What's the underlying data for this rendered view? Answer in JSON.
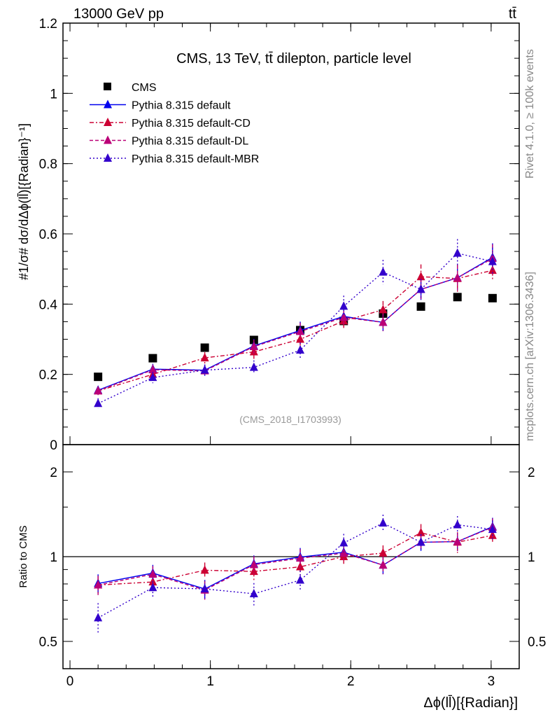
{
  "header": {
    "left": "13000 GeV pp",
    "right": "tt̄"
  },
  "side": {
    "top": "Rivet 4.1.0, ≥ 100k events",
    "bottom": "mcplots.cern.ch [arXiv:1306.3436]"
  },
  "chart_data": {
    "type": "scatter",
    "title": "CMS, 13 TeV, tt̄ dilepton, particle level",
    "watermark": "(CMS_2018_I1703993)",
    "xlabel": "Δϕ(ll̄)[{Radian}]",
    "ylabel": "#1/σ# dσ/dΔϕ(ll̄)[{Radian}⁻¹]",
    "ratio_ylabel": "Ratio to CMS",
    "xlim": [
      -0.05,
      3.2
    ],
    "ylim": [
      0,
      1.2
    ],
    "ratio_ylim": [
      0.4,
      2.5
    ],
    "xticks": [
      "0",
      "1",
      "2",
      "3"
    ],
    "yticks": [
      "0",
      "0.2",
      "0.4",
      "0.6",
      "0.8",
      "1",
      "1.2"
    ],
    "ratio_yticks": [
      "0.5",
      "1",
      "2"
    ],
    "x": [
      0.2,
      0.59,
      0.96,
      1.31,
      1.64,
      1.95,
      2.23,
      2.5,
      2.76,
      3.01
    ],
    "series": [
      {
        "name": "CMS",
        "color": "#000000",
        "marker": "square",
        "dash": "",
        "values": [
          0.193,
          0.246,
          0.276,
          0.298,
          0.326,
          0.352,
          0.373,
          0.393,
          0.42,
          0.417
        ],
        "err": [
          0,
          0,
          0,
          0,
          0,
          0,
          0,
          0,
          0,
          0
        ]
      },
      {
        "name": "Pythia 8.315 default",
        "color": "#0000ee",
        "marker": "triangle",
        "dash": "",
        "values": [
          0.155,
          0.215,
          0.212,
          0.281,
          0.325,
          0.365,
          0.348,
          0.442,
          0.475,
          0.533
        ],
        "err": [
          0.012,
          0.015,
          0.016,
          0.02,
          0.025,
          0.02,
          0.025,
          0.03,
          0.035,
          0.04
        ]
      },
      {
        "name": "Pythia 8.315 default-CD",
        "color": "#cc0033",
        "marker": "triangle",
        "dash": "6,3,2,3",
        "values": [
          0.153,
          0.2,
          0.247,
          0.264,
          0.3,
          0.352,
          0.384,
          0.478,
          0.473,
          0.496
        ],
        "err": [
          0.012,
          0.015,
          0.016,
          0.02,
          0.022,
          0.02,
          0.025,
          0.035,
          0.04,
          0.025
        ]
      },
      {
        "name": "Pythia 8.315 default-DL",
        "color": "#bb0077",
        "marker": "triangle",
        "dash": "5,3",
        "values": [
          0.153,
          0.213,
          0.21,
          0.279,
          0.322,
          0.362,
          0.348,
          0.442,
          0.475,
          0.53
        ],
        "err": [
          0.012,
          0.015,
          0.016,
          0.02,
          0.025,
          0.02,
          0.025,
          0.03,
          0.035,
          0.04
        ]
      },
      {
        "name": "Pythia 8.315 default-MBR",
        "color": "#3300cc",
        "marker": "triangle",
        "dash": "2,3",
        "values": [
          0.117,
          0.191,
          0.212,
          0.22,
          0.269,
          0.394,
          0.491,
          0.442,
          0.545,
          0.521
        ],
        "err": [
          0.015,
          0.016,
          0.016,
          0.02,
          0.022,
          0.03,
          0.035,
          0.03,
          0.04,
          0.04
        ]
      }
    ]
  }
}
